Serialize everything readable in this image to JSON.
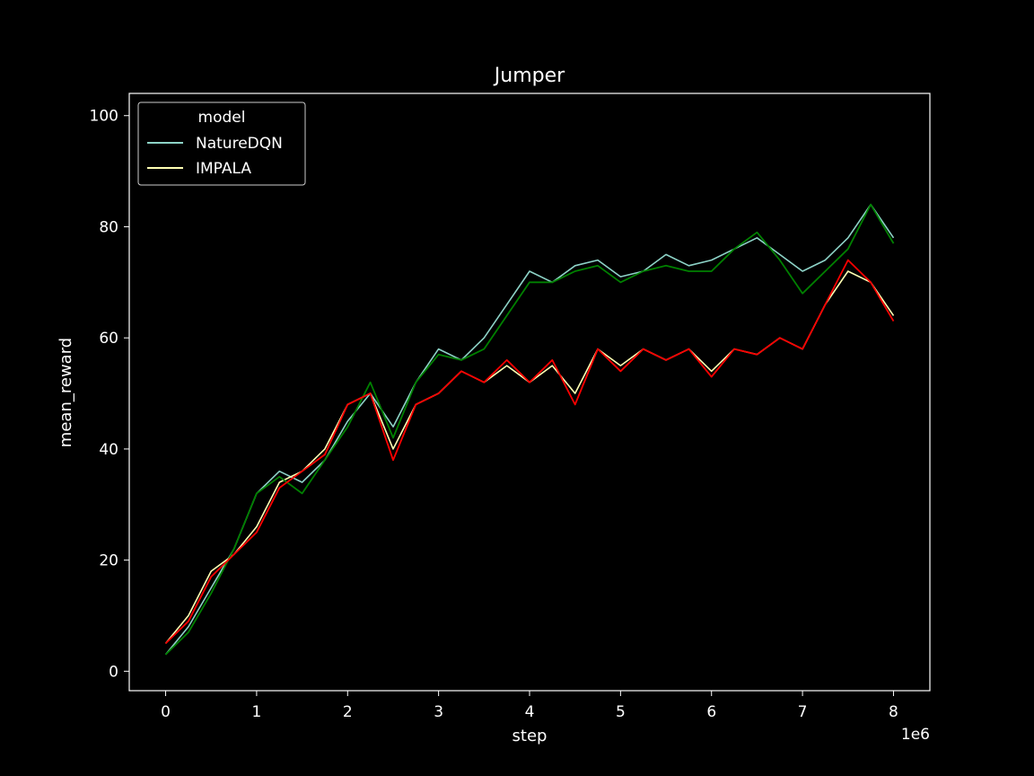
{
  "chart_data": {
    "type": "line",
    "title": "Jumper",
    "xlabel": "step",
    "ylabel": "mean_reward",
    "x_offset_label": "1e6",
    "xlim": [
      -0.4,
      8.4
    ],
    "ylim": [
      -3.5,
      104
    ],
    "x_ticks": [
      0,
      1,
      2,
      3,
      4,
      5,
      6,
      7,
      8
    ],
    "y_ticks": [
      0,
      20,
      40,
      60,
      80,
      100
    ],
    "grid": false,
    "legend": {
      "title": "model",
      "placement": "top-left",
      "entries": [
        {
          "label": "NatureDQN",
          "color": "#8dd3c7"
        },
        {
          "label": "IMPALA",
          "color": "#ffffb3"
        }
      ]
    },
    "series": [
      {
        "name": "NatureDQN",
        "color": "#8dd3c7",
        "x": [
          0.0,
          0.25,
          0.5,
          0.75,
          1.0,
          1.25,
          1.5,
          1.75,
          2.0,
          2.25,
          2.5,
          2.75,
          3.0,
          3.25,
          3.5,
          3.75,
          4.0,
          4.25,
          4.5,
          4.75,
          5.0,
          5.25,
          5.5,
          5.75,
          6.0,
          6.25,
          6.5,
          6.75,
          7.0,
          7.25,
          7.5,
          7.75,
          8.0
        ],
        "y": [
          3,
          8,
          15,
          22,
          32,
          36,
          34,
          38,
          45,
          50,
          44,
          52,
          58,
          56,
          60,
          66,
          72,
          70,
          73,
          74,
          71,
          72,
          75,
          73,
          74,
          76,
          78,
          75,
          72,
          74,
          78,
          84,
          78
        ]
      },
      {
        "name": "IMPALA",
        "color": "#ffffb3",
        "x": [
          0.0,
          0.25,
          0.5,
          0.75,
          1.0,
          1.25,
          1.5,
          1.75,
          2.0,
          2.25,
          2.5,
          2.75,
          3.0,
          3.25,
          3.5,
          3.75,
          4.0,
          4.25,
          4.5,
          4.75,
          5.0,
          5.25,
          5.5,
          5.75,
          6.0,
          6.25,
          6.5,
          6.75,
          7.0,
          7.25,
          7.5,
          7.75,
          8.0
        ],
        "y": [
          5,
          10,
          18,
          21,
          26,
          34,
          36,
          40,
          48,
          50,
          40,
          48,
          50,
          54,
          52,
          55,
          52,
          55,
          50,
          58,
          55,
          58,
          56,
          58,
          54,
          58,
          57,
          60,
          58,
          66,
          72,
          70,
          64
        ]
      },
      {
        "color": "#008000",
        "x": [
          0.0,
          0.25,
          0.5,
          0.75,
          1.0,
          1.25,
          1.5,
          1.75,
          2.0,
          2.25,
          2.5,
          2.75,
          3.0,
          3.25,
          3.5,
          3.75,
          4.0,
          4.25,
          4.5,
          4.75,
          5.0,
          5.25,
          5.5,
          5.75,
          6.0,
          6.25,
          6.5,
          6.75,
          7.0,
          7.25,
          7.5,
          7.75,
          8.0
        ],
        "y": [
          3,
          7,
          14,
          22,
          32,
          35,
          32,
          38,
          44,
          52,
          42,
          52,
          57,
          56,
          58,
          64,
          70,
          70,
          72,
          73,
          70,
          72,
          73,
          72,
          72,
          76,
          79,
          74,
          68,
          72,
          76,
          84,
          77
        ]
      },
      {
        "color": "#ff0000",
        "x": [
          0.0,
          0.25,
          0.5,
          0.75,
          1.0,
          1.25,
          1.5,
          1.75,
          2.0,
          2.25,
          2.5,
          2.75,
          3.0,
          3.25,
          3.5,
          3.75,
          4.0,
          4.25,
          4.5,
          4.75,
          5.0,
          5.25,
          5.5,
          5.75,
          6.0,
          6.25,
          6.5,
          6.75,
          7.0,
          7.25,
          7.5,
          7.75,
          8.0
        ],
        "y": [
          5,
          9,
          17,
          21,
          25,
          33,
          36,
          39,
          48,
          50,
          38,
          48,
          50,
          54,
          52,
          56,
          52,
          56,
          48,
          58,
          54,
          58,
          56,
          58,
          53,
          58,
          57,
          60,
          58,
          66,
          74,
          70,
          63
        ]
      }
    ]
  }
}
